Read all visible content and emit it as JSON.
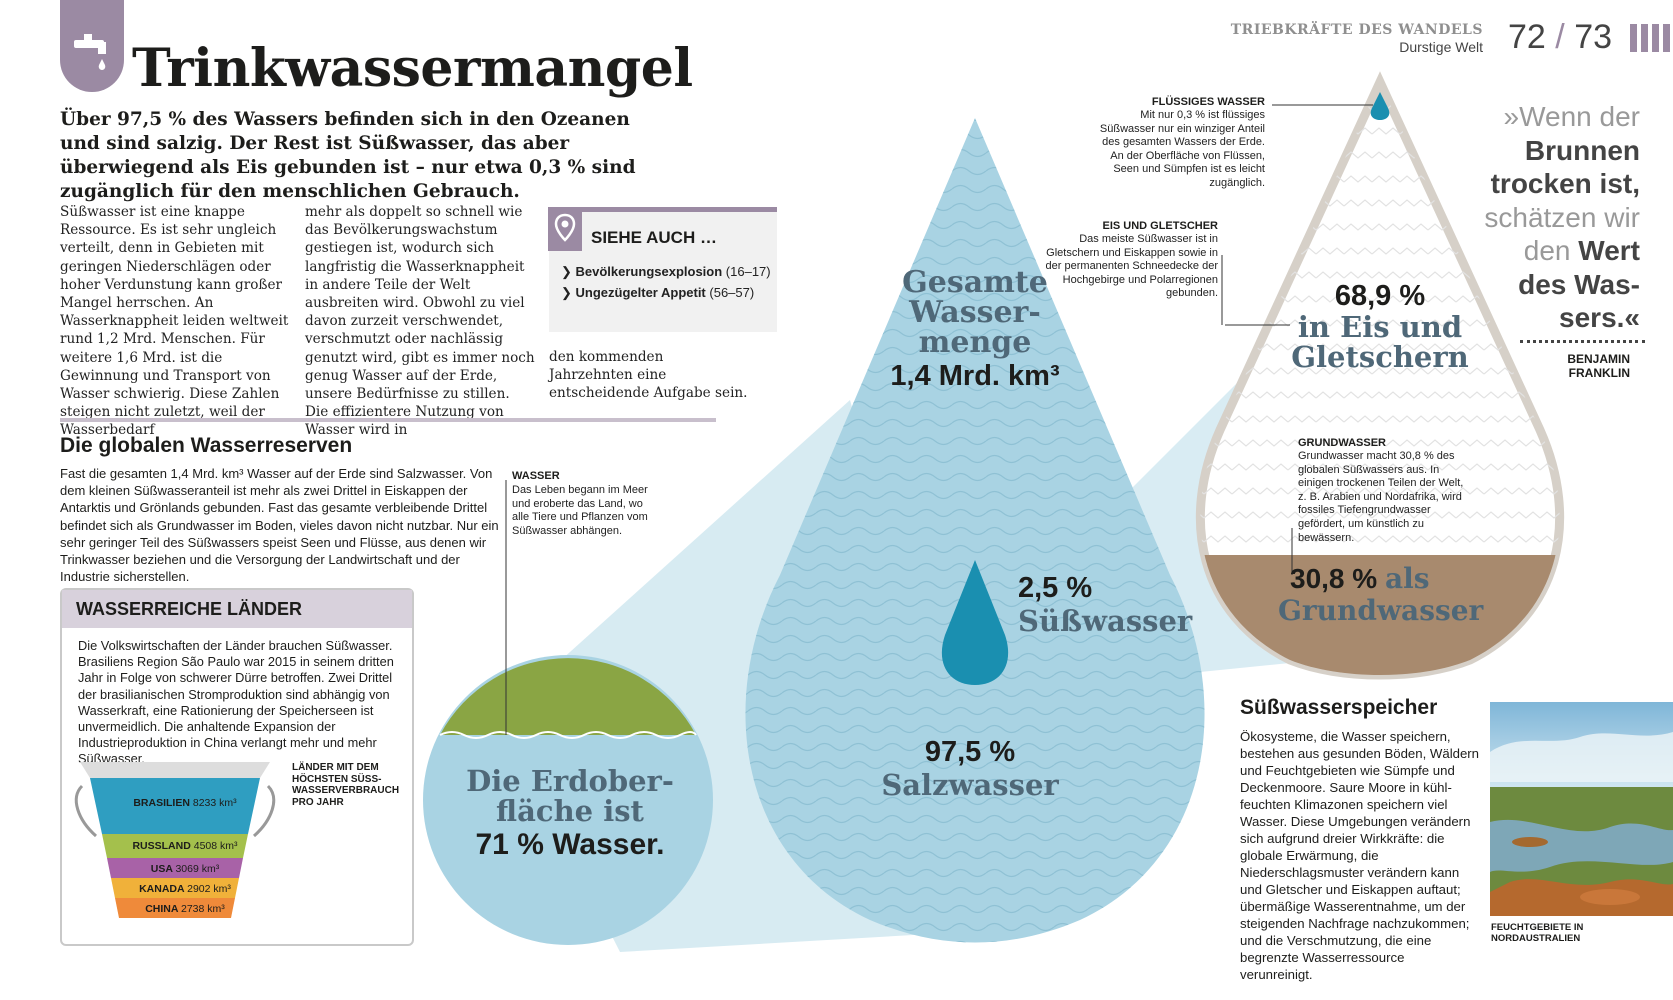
{
  "header": {
    "title": "Trinkwassermangel",
    "running_title": "TRIEBKRÄFTE DES WANDELS",
    "running_subtitle": "Durstige Welt",
    "page_left": "72",
    "page_sep": "/",
    "page_right": "73"
  },
  "intro": "Über 97,5 % des Wassers befinden sich in den Ozeanen und sind salzig. Der Rest ist Süßwasser, das aber überwiegend als Eis gebunden ist – nur etwa 0,3 % sind zugänglich für den menschlichen Gebrauch.",
  "body": {
    "col1": "Süßwasser ist eine knappe Ressource. Es ist sehr ungleich verteilt, denn in Gebieten mit geringen Niederschlägen oder hoher Verdunstung kann großer Mangel herrschen. An Wasserknappheit leiden weltweit rund 1,2 Mrd. Menschen. Für weitere 1,6 Mrd. ist die Gewinnung und Transport von Wasser schwierig. Diese Zahlen steigen nicht zuletzt, weil der Wasserbedarf",
    "col2": "mehr als doppelt so schnell wie das Bevölkerungswachstum gestiegen ist, wodurch sich langfristig die Wasserknappheit in andere Teile der Welt ausbreiten wird. Obwohl zu viel davon zurzeit verschwendet, verschmutzt oder nachlässig genutzt wird, gibt es immer noch genug Wasser auf der Erde, unsere Bedürfnisse zu stillen. Die effizientere Nutzung von Wasser wird in",
    "col3": "den kommenden Jahrzehnten eine entscheidende Aufgabe sein."
  },
  "see_also": {
    "heading": "SIEHE AUCH …",
    "items": [
      {
        "title": "Bevölkerungsexplosion",
        "pages": "(16–17)"
      },
      {
        "title": "Ungezügelter Appetit",
        "pages": "(56–57)"
      }
    ]
  },
  "reserves": {
    "heading": "Die globalen Wasserreserven",
    "text": "Fast die gesamten 1,4 Mrd. km³ Wasser auf der Erde sind Salzwasser. Von dem kleinen Süßwasseranteil ist mehr als zwei Drittel in Eiskappen der Antarktis und Grönlands gebunden. Fast das gesamte verbleibende Drittel befindet sich als Grundwasser im Boden, vieles davon nicht nutzbar. Nur ein sehr geringer Teil des Süßwassers speist Seen und Flüsse, aus denen wir Trinkwasser beziehen und die Versorgung der Landwirtschaft und der Industrie sicherstellen."
  },
  "annotations": {
    "wasser_title": "WASSER",
    "wasser_text": "Das Leben begann im Meer und eroberte das Land, wo alle Tiere und Pflanzen vom Süßwasser abhängen.",
    "fluessig_title": "FLÜSSIGES WASSER",
    "fluessig_text": "Mit nur 0,3 % ist flüssiges Süßwasser nur ein winziger Anteil des gesamten Wassers der Erde. An der Oberfläche von Flüssen, Seen und Sümpfen ist es leicht zugänglich.",
    "eis_title": "EIS UND GLETSCHER",
    "eis_text": "Das meiste Süßwasser ist in Gletschern und Eiskappen sowie in der permanenten Schneedecke der Hochgebirge und Polarregionen gebunden.",
    "grund_title": "GRUNDWASSER",
    "grund_text": "Grundwasser macht 30,8 % des globalen Süßwassers aus. In einigen trockenen Teilen der Welt, z. B. Arabien und Nordafrika, wird fossiles Tiefengrundwasser gefördert, um künstlich zu bewässern."
  },
  "infographic": {
    "total_label": "Gesamte Wasser-menge",
    "total_value": "1,4 Mrd. km³",
    "fresh_value": "2,5 %",
    "fresh_label": "Süßwasser",
    "salt_value": "97,5 %",
    "salt_label": "Salzwasser",
    "earth_label": "Die Erdober-fläche ist",
    "earth_value": "71 % Wasser.",
    "ice_value": "68,9 %",
    "ice_label": "in Eis und Gletschern",
    "ground_value": "30,8 %",
    "ground_label_1": "als",
    "ground_label_2": "Grundwasser",
    "colors": {
      "salt": "#a9d3e3",
      "fresh": "#1a8fb0",
      "ground": "#a88a6e",
      "land": "#8aa544"
    }
  },
  "quote": {
    "open": "»Wenn der",
    "l2": "Brunnen",
    "l3": "trocken ist,",
    "l4": "schätzen wir",
    "l5a": "den",
    "l5b": "Wert",
    "l6": "des Was-",
    "l7": "sers.«",
    "author_1": "BENJAMIN",
    "author_2": "FRANKLIN"
  },
  "countries_box": {
    "heading": "WASSERREICHE LÄNDER",
    "text": "Die Volkswirtschaften der Länder brauchen Süßwasser. Brasiliens Region São Paulo war 2015 in seinem dritten Jahr in Folge von schwerer Dürre betroffen. Zwei Drittel der brasilianischen Stromproduktion sind abhängig von Wasserkraft, eine Rationierung der Speicherseen ist unvermeidlich. Die anhaltende Expansion der Industrieproduktion in China verlangt mehr und mehr Süßwasser.",
    "legend": "LÄNDER MIT DEM HÖCHSTEN SÜSS-WASSERVERBRAUCH PRO JAHR",
    "bands": [
      {
        "country": "BRASILIEN",
        "value": "8233 km³",
        "color": "#2f9ec1"
      },
      {
        "country": "RUSSLAND",
        "value": "4508 km³",
        "color": "#a4c04c"
      },
      {
        "country": "USA",
        "value": "3069 km³",
        "color": "#a862a7"
      },
      {
        "country": "KANADA",
        "value": "2902 km³",
        "color": "#f0b13a"
      },
      {
        "country": "CHINA",
        "value": "2738 km³",
        "color": "#ef8a3a"
      }
    ]
  },
  "storage": {
    "heading": "Süßwasserspeicher",
    "text": "Ökosysteme, die Wasser speichern, bestehen aus gesunden Böden, Wäldern und Feuchtgebieten wie Sümpfe und Deckenmoore. Saure Moore in kühl-feuchten Klimazonen speichern viel Wasser. Diese Umgebungen verändern sich aufgrund dreier Wirkkräfte: die globale Erwärmung, die Niederschlagsmuster verändern kann und Gletscher und Eiskappen auftaut; übermäßige Wasserentnahme, um der steigenden Nachfrage nachzukommen; und die Verschmutzung, die eine begrenzte Wasserressource verunreinigt.",
    "caption": "FEUCHTGEBIETE IN NORDAUSTRALIEN"
  }
}
